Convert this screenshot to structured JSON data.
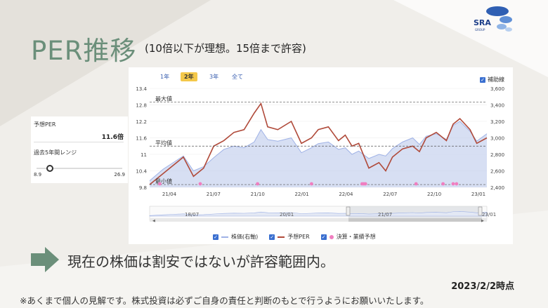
{
  "slide": {
    "title": "PER推移",
    "subtitle": "(10倍以下が理想。15倍まで許容)",
    "logo_text": "SRA",
    "logo_subtext": "GROUP",
    "conclusion": "現在の株価は割安ではないが許容範囲内。",
    "date": "2023/2/2時点",
    "disclaimer": "※あくまで個人の見解です。株式投資は必ずご自身の責任と判断のもとで行うようにお願いいたします。"
  },
  "left_panel": {
    "forecast_per_label": "予想PER",
    "forecast_per_value": "11.6倍",
    "range_label": "過去5年間レンジ",
    "range_min": "8.9",
    "range_max": "26.9",
    "range_position": 0.15
  },
  "tabs": [
    {
      "label": "1年",
      "state": "muted"
    },
    {
      "label": "2年",
      "state": "active"
    },
    {
      "label": "3年",
      "state": "normal"
    },
    {
      "label": "全て",
      "state": "normal"
    }
  ],
  "helper_label": "補助線",
  "legend": {
    "price": "株価(右軸)",
    "per": "予想PER",
    "earnings": "決算・業績予想"
  },
  "colors": {
    "title": "#6b8f7a",
    "per_line": "#b04a3a",
    "price_fill": "#c9d4ef",
    "price_line": "#9fb2e6",
    "earnings_dot": "#f07ec0",
    "accent_blue": "#3a6fd0",
    "arrow": "#6b8f7a"
  },
  "chart_data": {
    "type": "line",
    "title": "",
    "x_ticks": [
      "21/04",
      "21/07",
      "21/10",
      "22/01",
      "22/04",
      "22/07",
      "22/10",
      "23/01"
    ],
    "y_left_ticks": [
      "13.4",
      "12.8",
      "12.2",
      "11.6",
      "11",
      "10.4",
      "9.8"
    ],
    "y_right_ticks": [
      "3,600",
      "3,400",
      "3,200",
      "3,000",
      "2,800",
      "2,600",
      "2,400"
    ],
    "ylim_left": [
      9.8,
      13.4
    ],
    "ylim_right": [
      2400,
      3600
    ],
    "ref_lines": [
      {
        "label": "最大値",
        "value": 12.9
      },
      {
        "label": "平均値",
        "value": 11.3
      },
      {
        "label": "最小値",
        "value": 9.9
      }
    ],
    "series": [
      {
        "name": "予想PER",
        "axis": "left",
        "x": [
          0.0,
          0.04,
          0.07,
          0.1,
          0.13,
          0.16,
          0.19,
          0.22,
          0.25,
          0.28,
          0.31,
          0.33,
          0.35,
          0.38,
          0.42,
          0.45,
          0.48,
          0.5,
          0.53,
          0.56,
          0.58,
          0.6,
          0.62,
          0.65,
          0.68,
          0.7,
          0.72,
          0.75,
          0.78,
          0.8,
          0.82,
          0.85,
          0.88,
          0.9,
          0.92,
          0.95,
          0.97,
          1.0
        ],
        "values": [
          9.9,
          10.3,
          10.6,
          10.9,
          10.2,
          10.5,
          11.3,
          11.5,
          11.8,
          11.9,
          12.5,
          12.85,
          12.0,
          11.9,
          12.2,
          11.4,
          11.6,
          11.9,
          12.0,
          11.5,
          11.7,
          11.3,
          11.4,
          10.5,
          10.7,
          10.4,
          10.9,
          11.2,
          11.3,
          11.1,
          11.6,
          11.8,
          11.5,
          12.1,
          12.3,
          11.9,
          11.4,
          11.6
        ]
      },
      {
        "name": "株価(右軸)",
        "axis": "right",
        "x": [
          0.0,
          0.04,
          0.07,
          0.1,
          0.13,
          0.16,
          0.19,
          0.22,
          0.25,
          0.28,
          0.31,
          0.33,
          0.35,
          0.38,
          0.42,
          0.45,
          0.48,
          0.5,
          0.53,
          0.56,
          0.58,
          0.6,
          0.62,
          0.65,
          0.68,
          0.7,
          0.72,
          0.75,
          0.78,
          0.8,
          0.82,
          0.85,
          0.88,
          0.9,
          0.92,
          0.95,
          0.97,
          1.0
        ],
        "values": [
          2480,
          2620,
          2700,
          2780,
          2600,
          2650,
          2760,
          2860,
          2900,
          2880,
          2950,
          3100,
          2980,
          2960,
          3000,
          2820,
          2880,
          2930,
          2950,
          2860,
          2880,
          2800,
          2840,
          2750,
          2800,
          2780,
          2870,
          2950,
          3000,
          2920,
          3020,
          3050,
          2980,
          3150,
          3200,
          3080,
          2960,
          3050
        ]
      }
    ],
    "earnings_markers_x": [
      0.03,
      0.15,
      0.32,
      0.48,
      0.63,
      0.635,
      0.64,
      0.79,
      0.87,
      0.9,
      0.91
    ]
  }
}
